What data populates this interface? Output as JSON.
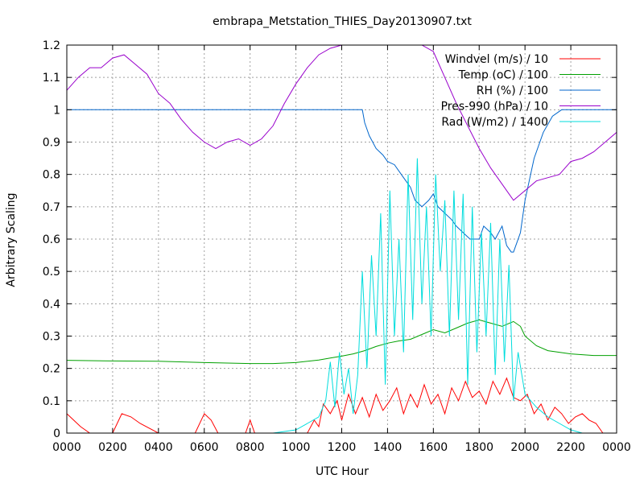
{
  "chart_data": {
    "type": "line",
    "title": "embrapa_Metstation_THIES_Day20130907.txt",
    "xlabel": "UTC Hour",
    "ylabel": "Arbitrary Scaling",
    "xlim": [
      0,
      2400
    ],
    "ylim": [
      0,
      1.2
    ],
    "grid": true,
    "legend_position": "top-right",
    "x_ticks": [
      "0000",
      "0200",
      "0400",
      "0600",
      "0800",
      "1000",
      "1200",
      "1400",
      "1600",
      "1800",
      "2000",
      "2200",
      "0000"
    ],
    "y_ticks": [
      "0",
      "0.1",
      "0.2",
      "0.3",
      "0.4",
      "0.5",
      "0.6",
      "0.7",
      "0.8",
      "0.9",
      "1",
      "1.1",
      "1.2"
    ],
    "series": [
      {
        "name": "Windvel (m/s) / 10",
        "color": "#ff0000",
        "x": [
          0,
          30,
          60,
          100,
          160,
          200,
          240,
          280,
          320,
          400,
          500,
          560,
          600,
          630,
          660,
          700,
          780,
          800,
          820,
          900,
          980,
          1050,
          1080,
          1100,
          1120,
          1150,
          1180,
          1200,
          1230,
          1260,
          1290,
          1320,
          1350,
          1380,
          1410,
          1440,
          1470,
          1500,
          1530,
          1560,
          1590,
          1620,
          1650,
          1680,
          1710,
          1740,
          1770,
          1800,
          1830,
          1860,
          1890,
          1920,
          1950,
          1980,
          2010,
          2040,
          2070,
          2100,
          2130,
          2160,
          2190,
          2220,
          2250,
          2280,
          2310,
          2340,
          2400
        ],
        "values": [
          0.06,
          0.04,
          0.02,
          0.0,
          0.0,
          0.0,
          0.06,
          0.05,
          0.03,
          0.0,
          0.0,
          0.0,
          0.06,
          0.04,
          0.0,
          0.0,
          0.0,
          0.04,
          0.0,
          0.0,
          0.0,
          0.0,
          0.04,
          0.02,
          0.09,
          0.06,
          0.1,
          0.04,
          0.12,
          0.06,
          0.11,
          0.05,
          0.12,
          0.07,
          0.1,
          0.14,
          0.06,
          0.12,
          0.08,
          0.15,
          0.09,
          0.12,
          0.06,
          0.14,
          0.1,
          0.16,
          0.11,
          0.13,
          0.09,
          0.16,
          0.12,
          0.17,
          0.11,
          0.1,
          0.12,
          0.06,
          0.09,
          0.04,
          0.08,
          0.06,
          0.03,
          0.05,
          0.06,
          0.04,
          0.03,
          0.0,
          0.0
        ]
      },
      {
        "name": "Temp (oC) / 100",
        "color": "#00a000",
        "x": [
          0,
          200,
          400,
          600,
          800,
          900,
          1000,
          1100,
          1150,
          1200,
          1250,
          1300,
          1350,
          1400,
          1450,
          1500,
          1550,
          1600,
          1650,
          1700,
          1750,
          1800,
          1850,
          1900,
          1950,
          1980,
          2000,
          2050,
          2100,
          2200,
          2300,
          2400
        ],
        "values": [
          0.225,
          0.223,
          0.222,
          0.218,
          0.215,
          0.215,
          0.218,
          0.226,
          0.232,
          0.238,
          0.245,
          0.255,
          0.268,
          0.278,
          0.285,
          0.29,
          0.305,
          0.32,
          0.31,
          0.325,
          0.34,
          0.35,
          0.34,
          0.33,
          0.345,
          0.33,
          0.3,
          0.27,
          0.255,
          0.245,
          0.24,
          0.24
        ]
      },
      {
        "name": "RH (%) / 100",
        "color": "#0066cc",
        "x": [
          0,
          1200,
          1290,
          1300,
          1320,
          1350,
          1380,
          1400,
          1430,
          1460,
          1480,
          1500,
          1520,
          1550,
          1580,
          1600,
          1620,
          1650,
          1680,
          1700,
          1730,
          1760,
          1780,
          1800,
          1820,
          1850,
          1870,
          1900,
          1920,
          1940,
          1950,
          1980,
          2000,
          2040,
          2080,
          2120,
          2160,
          2200,
          2300,
          2400
        ],
        "values": [
          1.0,
          1.0,
          1.0,
          0.96,
          0.92,
          0.88,
          0.86,
          0.84,
          0.83,
          0.8,
          0.78,
          0.76,
          0.72,
          0.7,
          0.72,
          0.74,
          0.7,
          0.68,
          0.66,
          0.64,
          0.62,
          0.6,
          0.6,
          0.6,
          0.64,
          0.62,
          0.6,
          0.64,
          0.58,
          0.56,
          0.56,
          0.62,
          0.72,
          0.85,
          0.93,
          0.98,
          1.0,
          1.0,
          1.0,
          1.0
        ]
      },
      {
        "name": "Pres-990 (hPa) / 10",
        "color": "#9900cc",
        "x": [
          0,
          50,
          100,
          150,
          200,
          250,
          300,
          350,
          400,
          450,
          500,
          550,
          600,
          650,
          700,
          750,
          800,
          850,
          900,
          950,
          1000,
          1050,
          1100,
          1150,
          1200,
          1250,
          1300,
          1350,
          1400,
          1450,
          1500,
          1550,
          1600,
          1650,
          1700,
          1750,
          1800,
          1850,
          1900,
          1950,
          2000,
          2050,
          2100,
          2150,
          2200,
          2250,
          2300,
          2350,
          2400
        ],
        "values": [
          1.06,
          1.1,
          1.13,
          1.13,
          1.16,
          1.17,
          1.14,
          1.11,
          1.05,
          1.02,
          0.97,
          0.93,
          0.9,
          0.88,
          0.9,
          0.91,
          0.89,
          0.91,
          0.95,
          1.02,
          1.08,
          1.13,
          1.17,
          1.19,
          1.2,
          1.2,
          1.2,
          1.2,
          1.2,
          1.2,
          1.2,
          1.2,
          1.18,
          1.1,
          1.02,
          0.95,
          0.88,
          0.82,
          0.77,
          0.72,
          0.75,
          0.78,
          0.79,
          0.8,
          0.84,
          0.85,
          0.87,
          0.9,
          0.93
        ]
      },
      {
        "name": "Rad (W/m2) / 1400",
        "color": "#00dddd",
        "x": [
          0,
          900,
          1000,
          1050,
          1100,
          1130,
          1150,
          1170,
          1190,
          1210,
          1230,
          1250,
          1270,
          1290,
          1310,
          1330,
          1350,
          1370,
          1390,
          1410,
          1430,
          1450,
          1470,
          1490,
          1510,
          1530,
          1550,
          1570,
          1590,
          1610,
          1630,
          1650,
          1670,
          1690,
          1710,
          1730,
          1750,
          1770,
          1790,
          1810,
          1830,
          1850,
          1870,
          1890,
          1910,
          1930,
          1950,
          1970,
          2000,
          2050,
          2100,
          2150,
          2200,
          2250,
          2300,
          2400
        ],
        "values": [
          0.0,
          0.0,
          0.01,
          0.03,
          0.05,
          0.1,
          0.22,
          0.08,
          0.25,
          0.12,
          0.2,
          0.06,
          0.18,
          0.5,
          0.2,
          0.55,
          0.3,
          0.68,
          0.15,
          0.75,
          0.3,
          0.6,
          0.25,
          0.8,
          0.35,
          0.85,
          0.4,
          0.7,
          0.3,
          0.8,
          0.5,
          0.72,
          0.3,
          0.75,
          0.35,
          0.74,
          0.15,
          0.7,
          0.25,
          0.62,
          0.3,
          0.65,
          0.18,
          0.6,
          0.22,
          0.52,
          0.1,
          0.25,
          0.12,
          0.08,
          0.05,
          0.03,
          0.01,
          0.0,
          0.0,
          0.0
        ]
      }
    ]
  }
}
